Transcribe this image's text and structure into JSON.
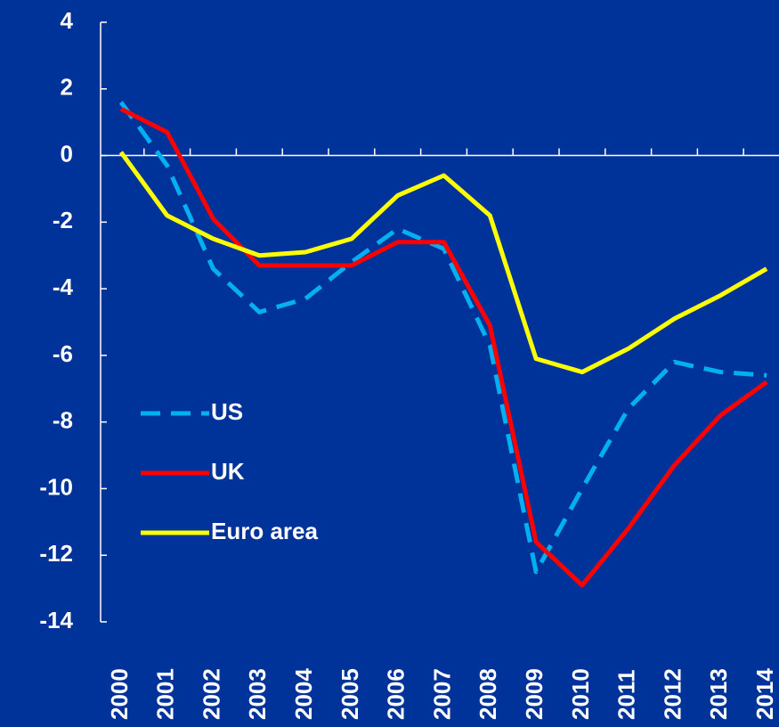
{
  "chart_data": {
    "type": "line",
    "categories": [
      "2000",
      "2001",
      "2002",
      "2003",
      "2004",
      "2005",
      "2006",
      "2007",
      "2008",
      "2009",
      "2010",
      "2011",
      "2012",
      "2013",
      "2014"
    ],
    "series": [
      {
        "name": "US",
        "color": "#00b0f0",
        "dashed": true,
        "values": [
          1.6,
          -0.3,
          -3.4,
          -4.7,
          -4.3,
          -3.2,
          -2.2,
          -2.8,
          -5.7,
          -12.5,
          -10.0,
          -7.6,
          -6.2,
          -6.5,
          -6.6
        ]
      },
      {
        "name": "UK",
        "color": "#ff0000",
        "dashed": false,
        "values": [
          1.4,
          0.7,
          -1.9,
          -3.3,
          -3.3,
          -3.3,
          -2.6,
          -2.6,
          -5.1,
          -11.6,
          -12.9,
          -11.2,
          -9.3,
          -7.8,
          -6.8
        ]
      },
      {
        "name": "Euro area",
        "color": "#ffff00",
        "dashed": false,
        "values": [
          0.1,
          -1.8,
          -2.5,
          -3.0,
          -2.9,
          -2.5,
          -1.2,
          -0.6,
          -1.8,
          -6.1,
          -6.5,
          -5.8,
          -4.9,
          -4.2,
          -3.4
        ]
      }
    ],
    "ylim": [
      -14,
      4
    ],
    "yticks": [
      -14,
      -12,
      -10,
      -8,
      -6,
      -4,
      -2,
      0,
      2,
      4
    ],
    "legend": "lower left"
  }
}
